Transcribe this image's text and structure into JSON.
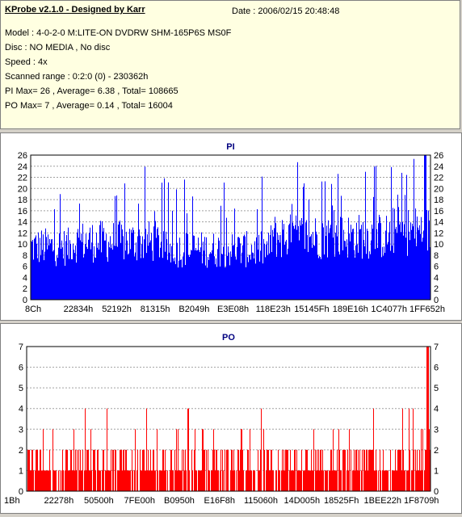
{
  "info": {
    "title": "KProbe v2.1.0 - Designed by Karr",
    "date": "Date : 2006/02/15 20:48:48",
    "lines": [
      "Model : 4-0-2-0 M:LITE-ON DVDRW SHM-165P6S MS0F",
      "Disc : NO MEDIA , No disc",
      "Speed : 4x",
      "Scanned range : 0:2:0 (0) - 230362h",
      "PI Max= 26 , Average= 6.38 , Total= 108665",
      "PO Max= 7 , Average= 0.14 , Total= 16004"
    ]
  },
  "chart_data": [
    {
      "type": "bar",
      "title": "PI",
      "color": "#0000ff",
      "ylim": [
        0,
        26
      ],
      "yticks": [
        0,
        2,
        4,
        6,
        8,
        10,
        12,
        14,
        16,
        18,
        20,
        22,
        24,
        26
      ],
      "xticks": [
        "8Ch",
        "22834h",
        "52192h",
        "81315h",
        "B2049h",
        "E3E08h",
        "118E23h",
        "15145Fh",
        "189E16h",
        "1C4077h",
        "1FF652h"
      ],
      "x_range": [
        0,
        230362
      ],
      "max": 26,
      "average": 6.38,
      "total": 108665,
      "grid": true
    },
    {
      "type": "bar",
      "title": "PO",
      "color": "#ff0000",
      "ylim": [
        0,
        7
      ],
      "yticks": [
        0,
        1,
        2,
        3,
        4,
        5,
        6,
        7
      ],
      "xticks": [
        "1Bh",
        "22278h",
        "50500h",
        "7FE00h",
        "B0950h",
        "E16F8h",
        "115060h",
        "14D005h",
        "18525Fh",
        "1BEE22h",
        "1F8709h"
      ],
      "x_range": [
        0,
        230362
      ],
      "max": 7,
      "average": 0.14,
      "total": 16004,
      "grid": true
    }
  ]
}
